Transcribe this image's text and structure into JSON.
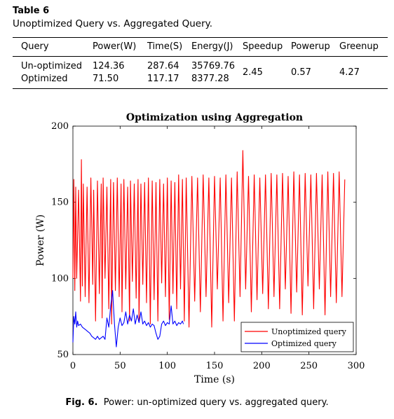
{
  "table": {
    "label": "Table 6",
    "caption": "Unoptimized Query vs. Aggregated Query.",
    "headers": [
      "Query",
      "Power(W)",
      "Time(S)",
      "Energy(J)",
      "Speedup",
      "Powerup",
      "Greenup"
    ],
    "rows": [
      {
        "query": "Un-optimized",
        "power": "124.36",
        "time": "287.64",
        "energy": "35769.76"
      },
      {
        "query": "Optimized",
        "power": "71.50",
        "time": "117.17",
        "energy": "8377.28"
      }
    ],
    "speedup": "2.45",
    "powerup": "0.57",
    "greenup": "4.27"
  },
  "figure": {
    "label": "Fig. 6.",
    "caption": "Power: un-optimized query vs. aggregated query."
  },
  "chart_data": {
    "type": "line",
    "title": "Optimization using Aggregation",
    "xlabel": "Time (s)",
    "ylabel": "Power (W)",
    "xlim": [
      0,
      300
    ],
    "ylim": [
      50,
      200
    ],
    "xticks": [
      "0",
      "50",
      "100",
      "150",
      "200",
      "250",
      "300"
    ],
    "yticks": [
      "50",
      "100",
      "150",
      "200"
    ],
    "legend_position": "bottom-right",
    "grid": false,
    "series": [
      {
        "name": "Unoptimized query",
        "color": "#ff0000",
        "x": [
          0,
          1,
          2,
          3,
          4,
          6,
          8,
          9,
          10,
          11,
          13,
          15,
          17,
          19,
          21,
          22,
          24,
          26,
          28,
          30,
          31,
          32,
          34,
          36,
          38,
          40,
          41,
          43,
          45,
          47,
          49,
          51,
          52,
          54,
          56,
          58,
          60,
          61,
          63,
          65,
          67,
          69,
          70,
          72,
          74,
          76,
          78,
          80,
          82,
          84,
          86,
          88,
          90,
          92,
          94,
          96,
          98,
          100,
          102,
          104,
          106,
          108,
          110,
          112,
          114,
          116,
          118,
          120,
          123,
          126,
          129,
          132,
          135,
          138,
          141,
          144,
          147,
          150,
          153,
          156,
          159,
          162,
          165,
          168,
          171,
          174,
          177,
          180,
          183,
          186,
          189,
          192,
          195,
          198,
          201,
          204,
          207,
          210,
          213,
          216,
          219,
          222,
          225,
          228,
          231,
          234,
          237,
          240,
          243,
          246,
          249,
          252,
          255,
          258,
          261,
          264,
          267,
          270,
          273,
          276,
          279,
          282,
          285,
          288
        ],
        "y": [
          100,
          165,
          92,
          160,
          100,
          158,
          85,
          178,
          95,
          162,
          88,
          160,
          84,
          166,
          96,
          158,
          72,
          164,
          90,
          162,
          74,
          166,
          100,
          160,
          80,
          165,
          70,
          163,
          92,
          166,
          88,
          162,
          78,
          165,
          93,
          160,
          72,
          164,
          98,
          162,
          87,
          165,
          72,
          162,
          96,
          163,
          84,
          166,
          70,
          164,
          86,
          163,
          72,
          165,
          97,
          162,
          88,
          166,
          73,
          164,
          90,
          163,
          80,
          168,
          93,
          165,
          72,
          166,
          68,
          167,
          85,
          166,
          78,
          168,
          88,
          166,
          68,
          167,
          93,
          166,
          72,
          168,
          84,
          166,
          72,
          170,
          88,
          184,
          93,
          167,
          78,
          168,
          86,
          166,
          90,
          168,
          80,
          169,
          88,
          168,
          80,
          169,
          93,
          167,
          77,
          170,
          91,
          168,
          76,
          169,
          95,
          168,
          80,
          169,
          93,
          168,
          76,
          170,
          88,
          169,
          84,
          170,
          88,
          165
        ]
      },
      {
        "name": "Optimized query",
        "color": "#0000ff",
        "x": [
          0,
          1,
          2,
          3,
          4,
          5,
          6,
          8,
          10,
          12,
          14,
          16,
          18,
          20,
          22,
          24,
          26,
          28,
          30,
          32,
          34,
          36,
          38,
          40,
          42,
          44,
          46,
          48,
          50,
          52,
          54,
          56,
          58,
          60,
          62,
          64,
          66,
          68,
          70,
          72,
          74,
          76,
          78,
          80,
          82,
          84,
          86,
          88,
          90,
          92,
          94,
          96,
          98,
          100,
          102,
          104,
          106,
          108,
          110,
          112,
          114,
          116,
          117
        ],
        "y": [
          58,
          75,
          70,
          78,
          68,
          72,
          69,
          70,
          68,
          67,
          66,
          65,
          64,
          62,
          61,
          60,
          62,
          60,
          61,
          62,
          60,
          74,
          68,
          82,
          92,
          70,
          55,
          68,
          74,
          69,
          71,
          78,
          70,
          76,
          72,
          80,
          70,
          76,
          71,
          78,
          70,
          72,
          69,
          71,
          68,
          70,
          69,
          64,
          60,
          62,
          70,
          72,
          69,
          71,
          70,
          82,
          70,
          72,
          69,
          71,
          70,
          72,
          70
        ]
      }
    ]
  }
}
